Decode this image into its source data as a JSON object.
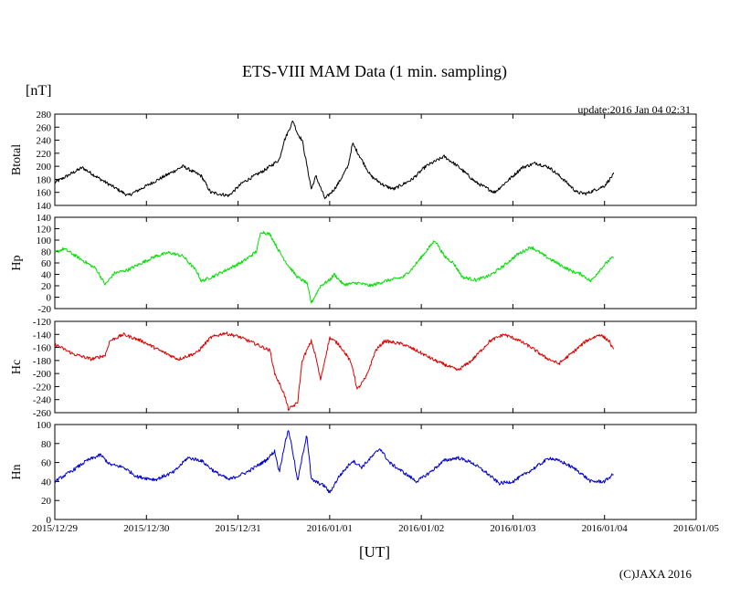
{
  "chart_data": {
    "type": "line",
    "title": "ETS-VIII MAM Data (1 min. sampling)",
    "unit_label": "[nT]",
    "update_label": "update:2016 Jan 04 02:31",
    "xlabel": "[UT]",
    "copyright": "(C)JAXA 2016",
    "x_ticks": [
      "2015/12/29",
      "2015/12/30",
      "2015/12/31",
      "2016/01/01",
      "2016/01/02",
      "2016/01/03",
      "2016/01/04",
      "2016/01/05"
    ],
    "x_range_days": [
      0,
      7
    ],
    "x_data_end_days": 6.1,
    "panels": [
      {
        "name": "Btotal",
        "color": "#000000",
        "ylim": [
          140,
          280
        ],
        "y_ticks": [
          140,
          160,
          180,
          200,
          220,
          240,
          260,
          280
        ],
        "keypoints": [
          [
            0,
            175
          ],
          [
            0.3,
            198
          ],
          [
            0.5,
            180
          ],
          [
            0.8,
            155
          ],
          [
            1.2,
            185
          ],
          [
            1.4,
            200
          ],
          [
            1.6,
            185
          ],
          [
            1.7,
            160
          ],
          [
            1.9,
            155
          ],
          [
            2.05,
            175
          ],
          [
            2.3,
            195
          ],
          [
            2.45,
            210
          ],
          [
            2.5,
            238
          ],
          [
            2.6,
            270
          ],
          [
            2.65,
            250
          ],
          [
            2.7,
            240
          ],
          [
            2.8,
            165
          ],
          [
            2.85,
            185
          ],
          [
            2.95,
            150
          ],
          [
            3.05,
            165
          ],
          [
            3.1,
            175
          ],
          [
            3.2,
            200
          ],
          [
            3.25,
            235
          ],
          [
            3.35,
            210
          ],
          [
            3.45,
            185
          ],
          [
            3.6,
            170
          ],
          [
            3.7,
            165
          ],
          [
            3.9,
            180
          ],
          [
            4.05,
            200
          ],
          [
            4.25,
            215
          ],
          [
            4.4,
            200
          ],
          [
            4.6,
            175
          ],
          [
            4.8,
            160
          ],
          [
            5.0,
            185
          ],
          [
            5.1,
            198
          ],
          [
            5.25,
            205
          ],
          [
            5.4,
            198
          ],
          [
            5.55,
            180
          ],
          [
            5.7,
            160
          ],
          [
            5.8,
            158
          ],
          [
            6.0,
            170
          ],
          [
            6.1,
            188
          ]
        ]
      },
      {
        "name": "Hp",
        "color": "#00e000",
        "ylim": [
          -20,
          140
        ],
        "y_ticks": [
          -20,
          0,
          20,
          40,
          60,
          80,
          100,
          120,
          140
        ],
        "keypoints": [
          [
            0,
            78
          ],
          [
            0.1,
            85
          ],
          [
            0.25,
            70
          ],
          [
            0.45,
            50
          ],
          [
            0.55,
            22
          ],
          [
            0.65,
            42
          ],
          [
            0.8,
            48
          ],
          [
            0.95,
            60
          ],
          [
            1.1,
            72
          ],
          [
            1.25,
            78
          ],
          [
            1.4,
            72
          ],
          [
            1.55,
            45
          ],
          [
            1.6,
            28
          ],
          [
            1.75,
            38
          ],
          [
            1.9,
            50
          ],
          [
            2.05,
            62
          ],
          [
            2.2,
            80
          ],
          [
            2.25,
            115
          ],
          [
            2.35,
            110
          ],
          [
            2.45,
            80
          ],
          [
            2.55,
            55
          ],
          [
            2.65,
            35
          ],
          [
            2.75,
            25
          ],
          [
            2.8,
            -10
          ],
          [
            2.9,
            20
          ],
          [
            3.0,
            30
          ],
          [
            3.05,
            40
          ],
          [
            3.15,
            22
          ],
          [
            3.3,
            25
          ],
          [
            3.45,
            20
          ],
          [
            3.6,
            28
          ],
          [
            3.8,
            35
          ],
          [
            3.9,
            50
          ],
          [
            4.0,
            70
          ],
          [
            4.05,
            80
          ],
          [
            4.15,
            100
          ],
          [
            4.25,
            72
          ],
          [
            4.35,
            60
          ],
          [
            4.45,
            35
          ],
          [
            4.6,
            30
          ],
          [
            4.75,
            38
          ],
          [
            4.9,
            55
          ],
          [
            5.05,
            75
          ],
          [
            5.2,
            88
          ],
          [
            5.35,
            72
          ],
          [
            5.5,
            58
          ],
          [
            5.65,
            45
          ],
          [
            5.75,
            40
          ],
          [
            5.85,
            28
          ],
          [
            5.95,
            48
          ],
          [
            6.05,
            65
          ],
          [
            6.1,
            70
          ]
        ]
      },
      {
        "name": "Hc",
        "color": "#e00000",
        "ylim": [
          -260,
          -120
        ],
        "y_ticks": [
          -260,
          -240,
          -220,
          -200,
          -180,
          -160,
          -140,
          -120
        ],
        "keypoints": [
          [
            0,
            -155
          ],
          [
            0.2,
            -170
          ],
          [
            0.4,
            -178
          ],
          [
            0.55,
            -172
          ],
          [
            0.6,
            -150
          ],
          [
            0.75,
            -140
          ],
          [
            0.95,
            -150
          ],
          [
            1.15,
            -165
          ],
          [
            1.35,
            -178
          ],
          [
            1.55,
            -168
          ],
          [
            1.7,
            -145
          ],
          [
            1.85,
            -138
          ],
          [
            2.0,
            -143
          ],
          [
            2.2,
            -155
          ],
          [
            2.35,
            -165
          ],
          [
            2.4,
            -200
          ],
          [
            2.5,
            -230
          ],
          [
            2.55,
            -255
          ],
          [
            2.65,
            -245
          ],
          [
            2.7,
            -180
          ],
          [
            2.8,
            -150
          ],
          [
            2.85,
            -175
          ],
          [
            2.9,
            -210
          ],
          [
            3.0,
            -145
          ],
          [
            3.1,
            -155
          ],
          [
            3.2,
            -175
          ],
          [
            3.25,
            -190
          ],
          [
            3.3,
            -225
          ],
          [
            3.4,
            -205
          ],
          [
            3.5,
            -165
          ],
          [
            3.6,
            -150
          ],
          [
            3.8,
            -155
          ],
          [
            3.95,
            -165
          ],
          [
            4.15,
            -180
          ],
          [
            4.4,
            -195
          ],
          [
            4.55,
            -180
          ],
          [
            4.75,
            -150
          ],
          [
            4.9,
            -140
          ],
          [
            5.05,
            -148
          ],
          [
            5.2,
            -160
          ],
          [
            5.35,
            -175
          ],
          [
            5.5,
            -185
          ],
          [
            5.65,
            -168
          ],
          [
            5.8,
            -150
          ],
          [
            5.95,
            -140
          ],
          [
            6.05,
            -150
          ],
          [
            6.1,
            -165
          ]
        ]
      },
      {
        "name": "Hn",
        "color": "#0000d0",
        "ylim": [
          0,
          100
        ],
        "y_ticks": [
          0,
          20,
          40,
          60,
          80,
          100
        ],
        "keypoints": [
          [
            0,
            40
          ],
          [
            0.2,
            52
          ],
          [
            0.35,
            62
          ],
          [
            0.5,
            68
          ],
          [
            0.6,
            58
          ],
          [
            0.75,
            55
          ],
          [
            0.9,
            45
          ],
          [
            1.1,
            42
          ],
          [
            1.3,
            50
          ],
          [
            1.45,
            65
          ],
          [
            1.6,
            62
          ],
          [
            1.75,
            50
          ],
          [
            1.9,
            42
          ],
          [
            2.1,
            50
          ],
          [
            2.3,
            62
          ],
          [
            2.4,
            72
          ],
          [
            2.45,
            50
          ],
          [
            2.5,
            75
          ],
          [
            2.55,
            95
          ],
          [
            2.6,
            70
          ],
          [
            2.65,
            40
          ],
          [
            2.7,
            65
          ],
          [
            2.75,
            90
          ],
          [
            2.8,
            42
          ],
          [
            2.95,
            35
          ],
          [
            3.0,
            28
          ],
          [
            3.1,
            45
          ],
          [
            3.25,
            62
          ],
          [
            3.35,
            55
          ],
          [
            3.45,
            65
          ],
          [
            3.55,
            75
          ],
          [
            3.65,
            60
          ],
          [
            3.8,
            50
          ],
          [
            3.95,
            40
          ],
          [
            4.1,
            50
          ],
          [
            4.25,
            62
          ],
          [
            4.4,
            65
          ],
          [
            4.55,
            60
          ],
          [
            4.7,
            50
          ],
          [
            4.85,
            38
          ],
          [
            5.0,
            40
          ],
          [
            5.2,
            52
          ],
          [
            5.4,
            65
          ],
          [
            5.55,
            60
          ],
          [
            5.7,
            52
          ],
          [
            5.85,
            40
          ],
          [
            6.0,
            40
          ],
          [
            6.1,
            48
          ]
        ]
      }
    ]
  }
}
